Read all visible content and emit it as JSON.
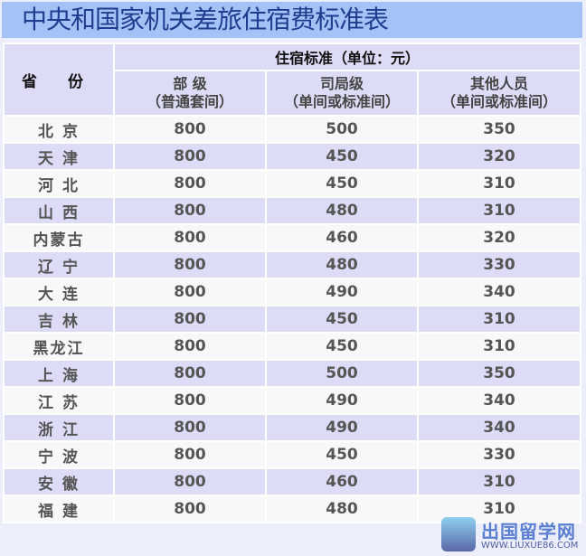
{
  "title": "中央和国家机关差旅住宿费标准表",
  "header": {
    "province": "省 份",
    "standard": "住宿标准（单位：元）",
    "cols": [
      {
        "l1": "部 级",
        "l2": "（普通套间）"
      },
      {
        "l1": "司局级",
        "l2": "（单间或标准间）"
      },
      {
        "l1": "其他人员",
        "l2": "（单间或标准间）"
      }
    ]
  },
  "rows": [
    [
      "北 京",
      "800",
      "500",
      "350"
    ],
    [
      "天 津",
      "800",
      "450",
      "320"
    ],
    [
      "河 北",
      "800",
      "450",
      "310"
    ],
    [
      "山 西",
      "800",
      "480",
      "310"
    ],
    [
      "内蒙古",
      "800",
      "460",
      "320"
    ],
    [
      "辽 宁",
      "800",
      "480",
      "330"
    ],
    [
      "大 连",
      "800",
      "490",
      "340"
    ],
    [
      "吉 林",
      "800",
      "450",
      "310"
    ],
    [
      "黑龙江",
      "800",
      "450",
      "310"
    ],
    [
      "上 海",
      "800",
      "500",
      "350"
    ],
    [
      "江 苏",
      "800",
      "490",
      "340"
    ],
    [
      "浙 江",
      "800",
      "490",
      "340"
    ],
    [
      "宁 波",
      "800",
      "450",
      "330"
    ],
    [
      "安 徽",
      "800",
      "460",
      "310"
    ],
    [
      "福 建",
      "800",
      "480",
      "310"
    ]
  ],
  "watermark": {
    "name": "出国留学网",
    "url": "WWW.LIUXUE86.COM"
  }
}
